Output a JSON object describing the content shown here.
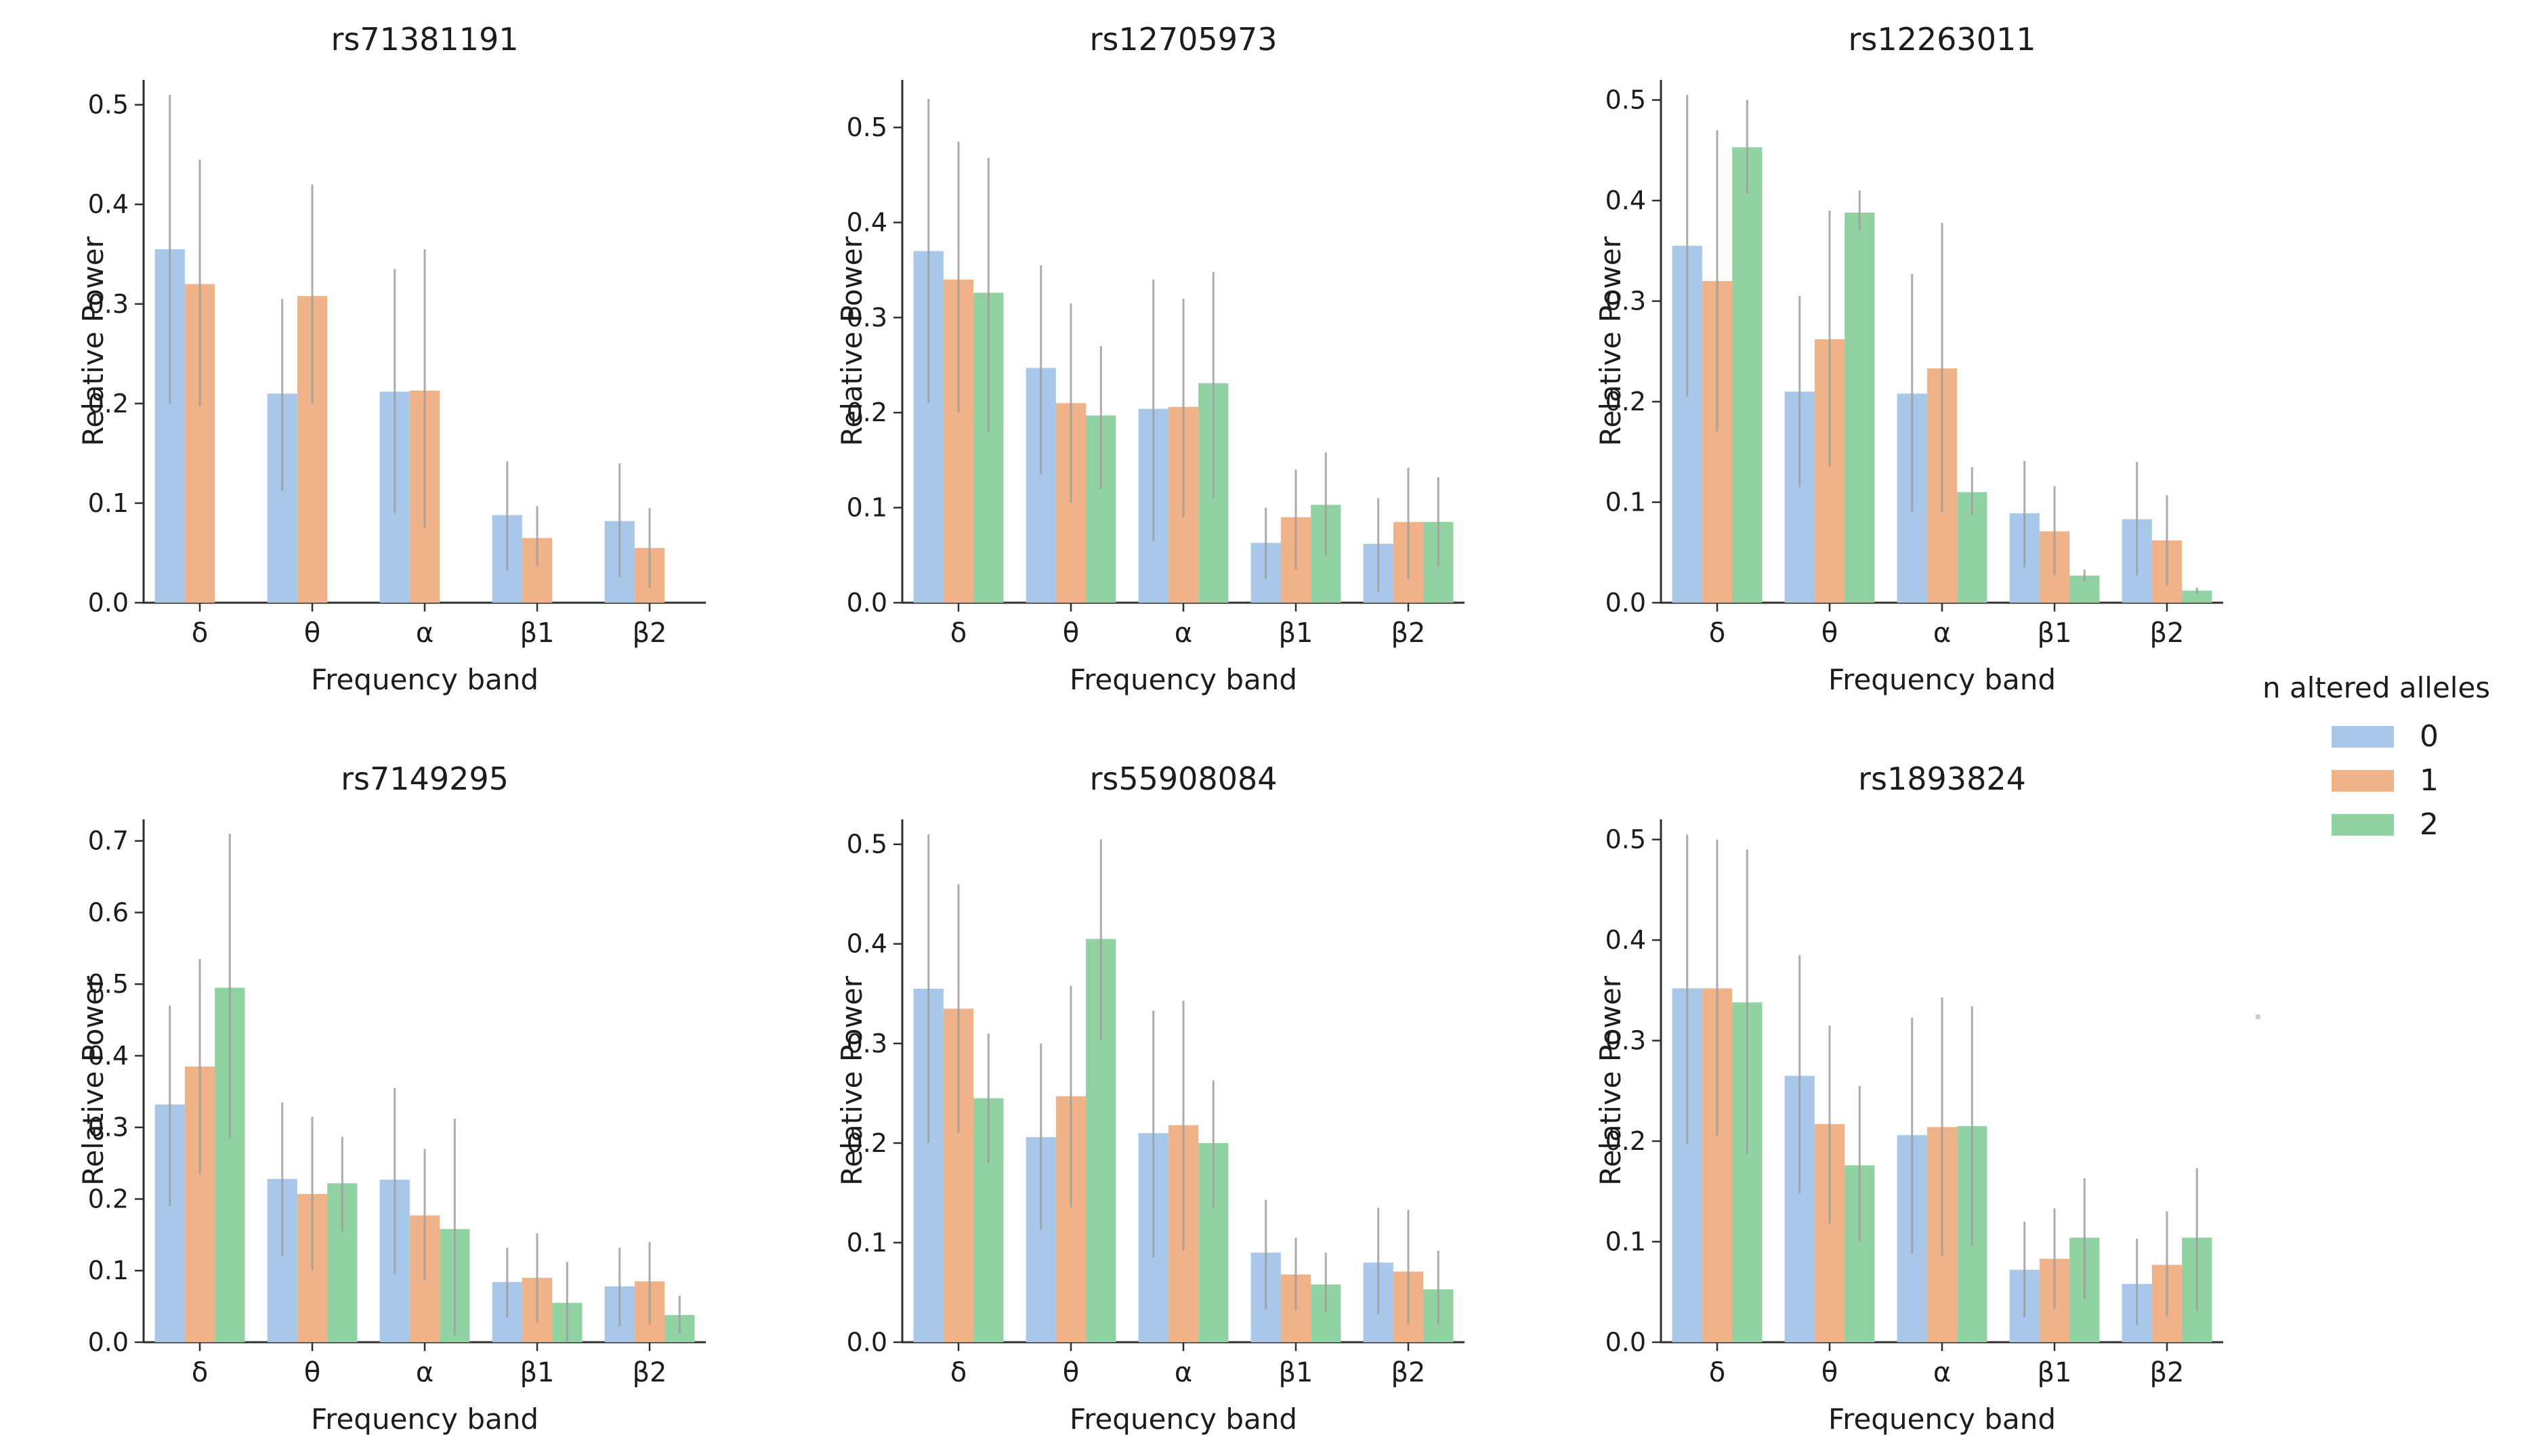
{
  "figure": {
    "background": "#ffffff",
    "grid": false,
    "text_color": "#1c1c1c",
    "spine_color": "#2e2e2e",
    "errorbar_color": "#9e9e9e"
  },
  "legend": {
    "title": "n altered alleles",
    "position": "right-of-figure",
    "entries": [
      {
        "label": "0",
        "color": "#a9c8e9"
      },
      {
        "label": "1",
        "color": "#f0b389"
      },
      {
        "label": "2",
        "color": "#90d2a1"
      }
    ]
  },
  "chart_data": [
    {
      "type": "bar",
      "title": "rs71381191",
      "xlabel": "Frequency band",
      "ylabel": "Relative Power",
      "categories": [
        "δ",
        "θ",
        "α",
        "β1",
        "β2"
      ],
      "ylim": [
        0,
        0.525
      ],
      "yticks": [
        0.0,
        0.1,
        0.2,
        0.3,
        0.4,
        0.5
      ],
      "grid": false,
      "series": [
        {
          "name": "0",
          "values": [
            0.355,
            0.21,
            0.212,
            0.088,
            0.082
          ],
          "err_lo": [
            0.2,
            0.112,
            0.09,
            0.032,
            0.025
          ],
          "err_hi": [
            0.51,
            0.305,
            0.335,
            0.142,
            0.14
          ]
        },
        {
          "name": "1",
          "values": [
            0.32,
            0.308,
            0.213,
            0.065,
            0.055
          ],
          "err_lo": [
            0.197,
            0.2,
            0.075,
            0.037,
            0.015
          ],
          "err_hi": [
            0.445,
            0.42,
            0.355,
            0.097,
            0.095
          ]
        },
        {
          "name": "2",
          "values": [
            null,
            null,
            null,
            null,
            null
          ],
          "err_lo": [
            null,
            null,
            null,
            null,
            null
          ],
          "err_hi": [
            null,
            null,
            null,
            null,
            null
          ]
        }
      ]
    },
    {
      "type": "bar",
      "title": "rs12705973",
      "xlabel": "Frequency band",
      "ylabel": "Relative Power",
      "categories": [
        "δ",
        "θ",
        "α",
        "β1",
        "β2"
      ],
      "ylim": [
        0,
        0.55
      ],
      "yticks": [
        0.0,
        0.1,
        0.2,
        0.3,
        0.4,
        0.5
      ],
      "grid": false,
      "series": [
        {
          "name": "0",
          "values": [
            0.37,
            0.247,
            0.204,
            0.063,
            0.062
          ],
          "err_lo": [
            0.21,
            0.135,
            0.065,
            0.025,
            0.012
          ],
          "err_hi": [
            0.53,
            0.355,
            0.34,
            0.1,
            0.11
          ]
        },
        {
          "name": "1",
          "values": [
            0.34,
            0.21,
            0.206,
            0.09,
            0.085
          ],
          "err_lo": [
            0.2,
            0.105,
            0.09,
            0.035,
            0.025
          ],
          "err_hi": [
            0.485,
            0.315,
            0.32,
            0.14,
            0.142
          ]
        },
        {
          "name": "2",
          "values": [
            0.326,
            0.197,
            0.231,
            0.103,
            0.085
          ],
          "err_lo": [
            0.18,
            0.12,
            0.11,
            0.05,
            0.038
          ],
          "err_hi": [
            0.468,
            0.27,
            0.348,
            0.158,
            0.132
          ]
        }
      ]
    },
    {
      "type": "bar",
      "title": "rs12263011",
      "xlabel": "Frequency band",
      "ylabel": "Relative Power",
      "categories": [
        "δ",
        "θ",
        "α",
        "β1",
        "β2"
      ],
      "ylim": [
        0,
        0.52
      ],
      "yticks": [
        0.0,
        0.1,
        0.2,
        0.3,
        0.4,
        0.5
      ],
      "grid": false,
      "series": [
        {
          "name": "0",
          "values": [
            0.355,
            0.21,
            0.208,
            0.089,
            0.083
          ],
          "err_lo": [
            0.205,
            0.115,
            0.09,
            0.035,
            0.027
          ],
          "err_hi": [
            0.505,
            0.305,
            0.327,
            0.141,
            0.14
          ]
        },
        {
          "name": "1",
          "values": [
            0.32,
            0.262,
            0.233,
            0.071,
            0.062
          ],
          "err_lo": [
            0.17,
            0.135,
            0.09,
            0.027,
            0.017
          ],
          "err_hi": [
            0.47,
            0.39,
            0.378,
            0.116,
            0.107
          ]
        },
        {
          "name": "2",
          "values": [
            0.453,
            0.388,
            0.11,
            0.027,
            0.012
          ],
          "err_lo": [
            0.407,
            0.37,
            0.087,
            0.021,
            0.009
          ],
          "err_hi": [
            0.5,
            0.41,
            0.135,
            0.033,
            0.015
          ]
        }
      ]
    },
    {
      "type": "bar",
      "title": "rs7149295",
      "xlabel": "Frequency band",
      "ylabel": "Relative Power",
      "categories": [
        "δ",
        "θ",
        "α",
        "β1",
        "β2"
      ],
      "ylim": [
        0,
        0.73
      ],
      "yticks": [
        0.0,
        0.1,
        0.2,
        0.3,
        0.4,
        0.5,
        0.6,
        0.7
      ],
      "grid": false,
      "series": [
        {
          "name": "0",
          "values": [
            0.332,
            0.228,
            0.227,
            0.084,
            0.078
          ],
          "err_lo": [
            0.19,
            0.12,
            0.095,
            0.035,
            0.022
          ],
          "err_hi": [
            0.47,
            0.335,
            0.355,
            0.132,
            0.132
          ]
        },
        {
          "name": "1",
          "values": [
            0.385,
            0.207,
            0.177,
            0.09,
            0.085
          ],
          "err_lo": [
            0.235,
            0.1,
            0.087,
            0.027,
            0.025
          ],
          "err_hi": [
            0.535,
            0.315,
            0.27,
            0.152,
            0.14
          ]
        },
        {
          "name": "2",
          "values": [
            0.495,
            0.222,
            0.158,
            0.055,
            0.038
          ],
          "err_lo": [
            0.285,
            0.155,
            0.01,
            0.002,
            0.012
          ],
          "err_hi": [
            0.71,
            0.287,
            0.312,
            0.112,
            0.065
          ]
        }
      ]
    },
    {
      "type": "bar",
      "title": "rs55908084",
      "xlabel": "Frequency band",
      "ylabel": "Relative Power",
      "categories": [
        "δ",
        "θ",
        "α",
        "β1",
        "β2"
      ],
      "ylim": [
        0,
        0.525
      ],
      "yticks": [
        0.0,
        0.1,
        0.2,
        0.3,
        0.4,
        0.5
      ],
      "grid": false,
      "series": [
        {
          "name": "0",
          "values": [
            0.355,
            0.206,
            0.21,
            0.09,
            0.08
          ],
          "err_lo": [
            0.2,
            0.113,
            0.085,
            0.033,
            0.028
          ],
          "err_hi": [
            0.51,
            0.3,
            0.333,
            0.143,
            0.135
          ]
        },
        {
          "name": "1",
          "values": [
            0.335,
            0.247,
            0.218,
            0.068,
            0.071
          ],
          "err_lo": [
            0.21,
            0.135,
            0.092,
            0.032,
            0.018
          ],
          "err_hi": [
            0.46,
            0.358,
            0.343,
            0.105,
            0.133
          ]
        },
        {
          "name": "2",
          "values": [
            0.245,
            0.405,
            0.2,
            0.058,
            0.053
          ],
          "err_lo": [
            0.18,
            0.303,
            0.135,
            0.03,
            0.018
          ],
          "err_hi": [
            0.31,
            0.505,
            0.263,
            0.09,
            0.092
          ]
        }
      ]
    },
    {
      "type": "bar",
      "title": "rs1893824",
      "xlabel": "Frequency band",
      "ylabel": "Relative Power",
      "categories": [
        "δ",
        "θ",
        "α",
        "β1",
        "β2"
      ],
      "ylim": [
        0,
        0.52
      ],
      "yticks": [
        0.0,
        0.1,
        0.2,
        0.3,
        0.4,
        0.5
      ],
      "grid": false,
      "series": [
        {
          "name": "0",
          "values": [
            0.352,
            0.265,
            0.206,
            0.072,
            0.058
          ],
          "err_lo": [
            0.197,
            0.148,
            0.088,
            0.025,
            0.017
          ],
          "err_hi": [
            0.505,
            0.385,
            0.323,
            0.12,
            0.103
          ]
        },
        {
          "name": "1",
          "values": [
            0.352,
            0.217,
            0.214,
            0.083,
            0.077
          ],
          "err_lo": [
            0.205,
            0.118,
            0.086,
            0.033,
            0.026
          ],
          "err_hi": [
            0.5,
            0.315,
            0.343,
            0.133,
            0.13
          ]
        },
        {
          "name": "2",
          "values": [
            0.338,
            0.176,
            0.215,
            0.104,
            0.104
          ],
          "err_lo": [
            0.187,
            0.1,
            0.096,
            0.043,
            0.031
          ],
          "err_hi": [
            0.49,
            0.255,
            0.334,
            0.163,
            0.173
          ]
        }
      ]
    }
  ]
}
